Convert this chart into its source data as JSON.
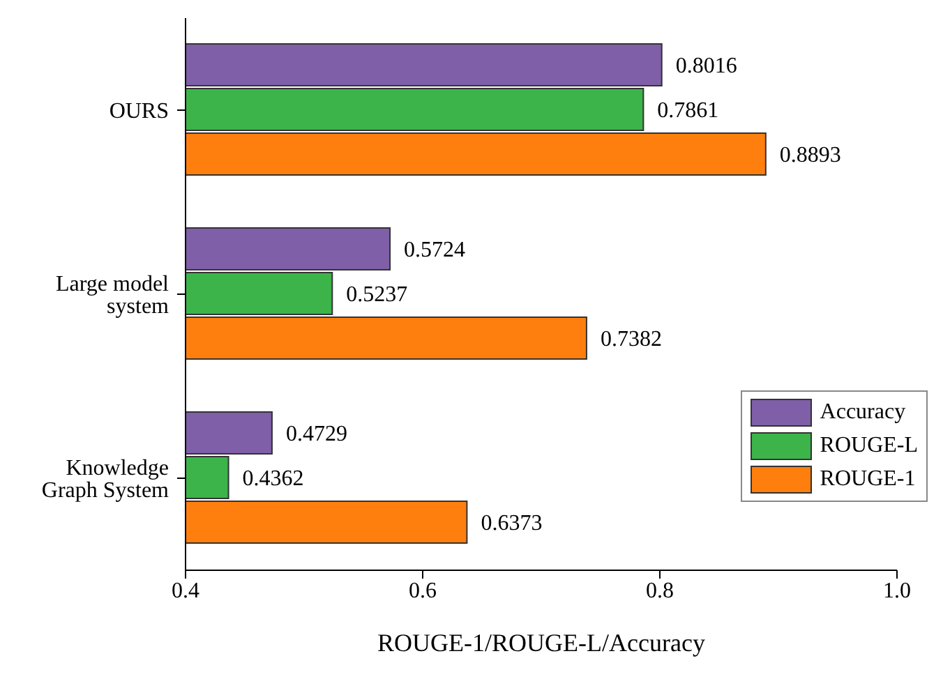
{
  "chart_data": {
    "type": "bar",
    "orientation": "horizontal",
    "xlabel": "ROUGE-1/ROUGE-L/Accuracy",
    "categories": [
      "OURS",
      "Large model system",
      "Knowledge Graph System"
    ],
    "series": [
      {
        "name": "Accuracy",
        "color": "#7f5fa8",
        "values": [
          0.8016,
          0.5724,
          0.4729
        ]
      },
      {
        "name": "ROUGE-L",
        "color": "#3cb44a",
        "values": [
          0.7861,
          0.5237,
          0.4362
        ]
      },
      {
        "name": "ROUGE-1",
        "color": "#ff7f0e",
        "values": [
          0.8893,
          0.7382,
          0.6373
        ]
      }
    ],
    "xlim": [
      0.4,
      1.0
    ],
    "xticks": [
      0.4,
      0.6,
      0.8,
      {
        "value": 1,
        "label": "1.0"
      }
    ],
    "data_labels": true,
    "legend": "right",
    "grid": false
  }
}
